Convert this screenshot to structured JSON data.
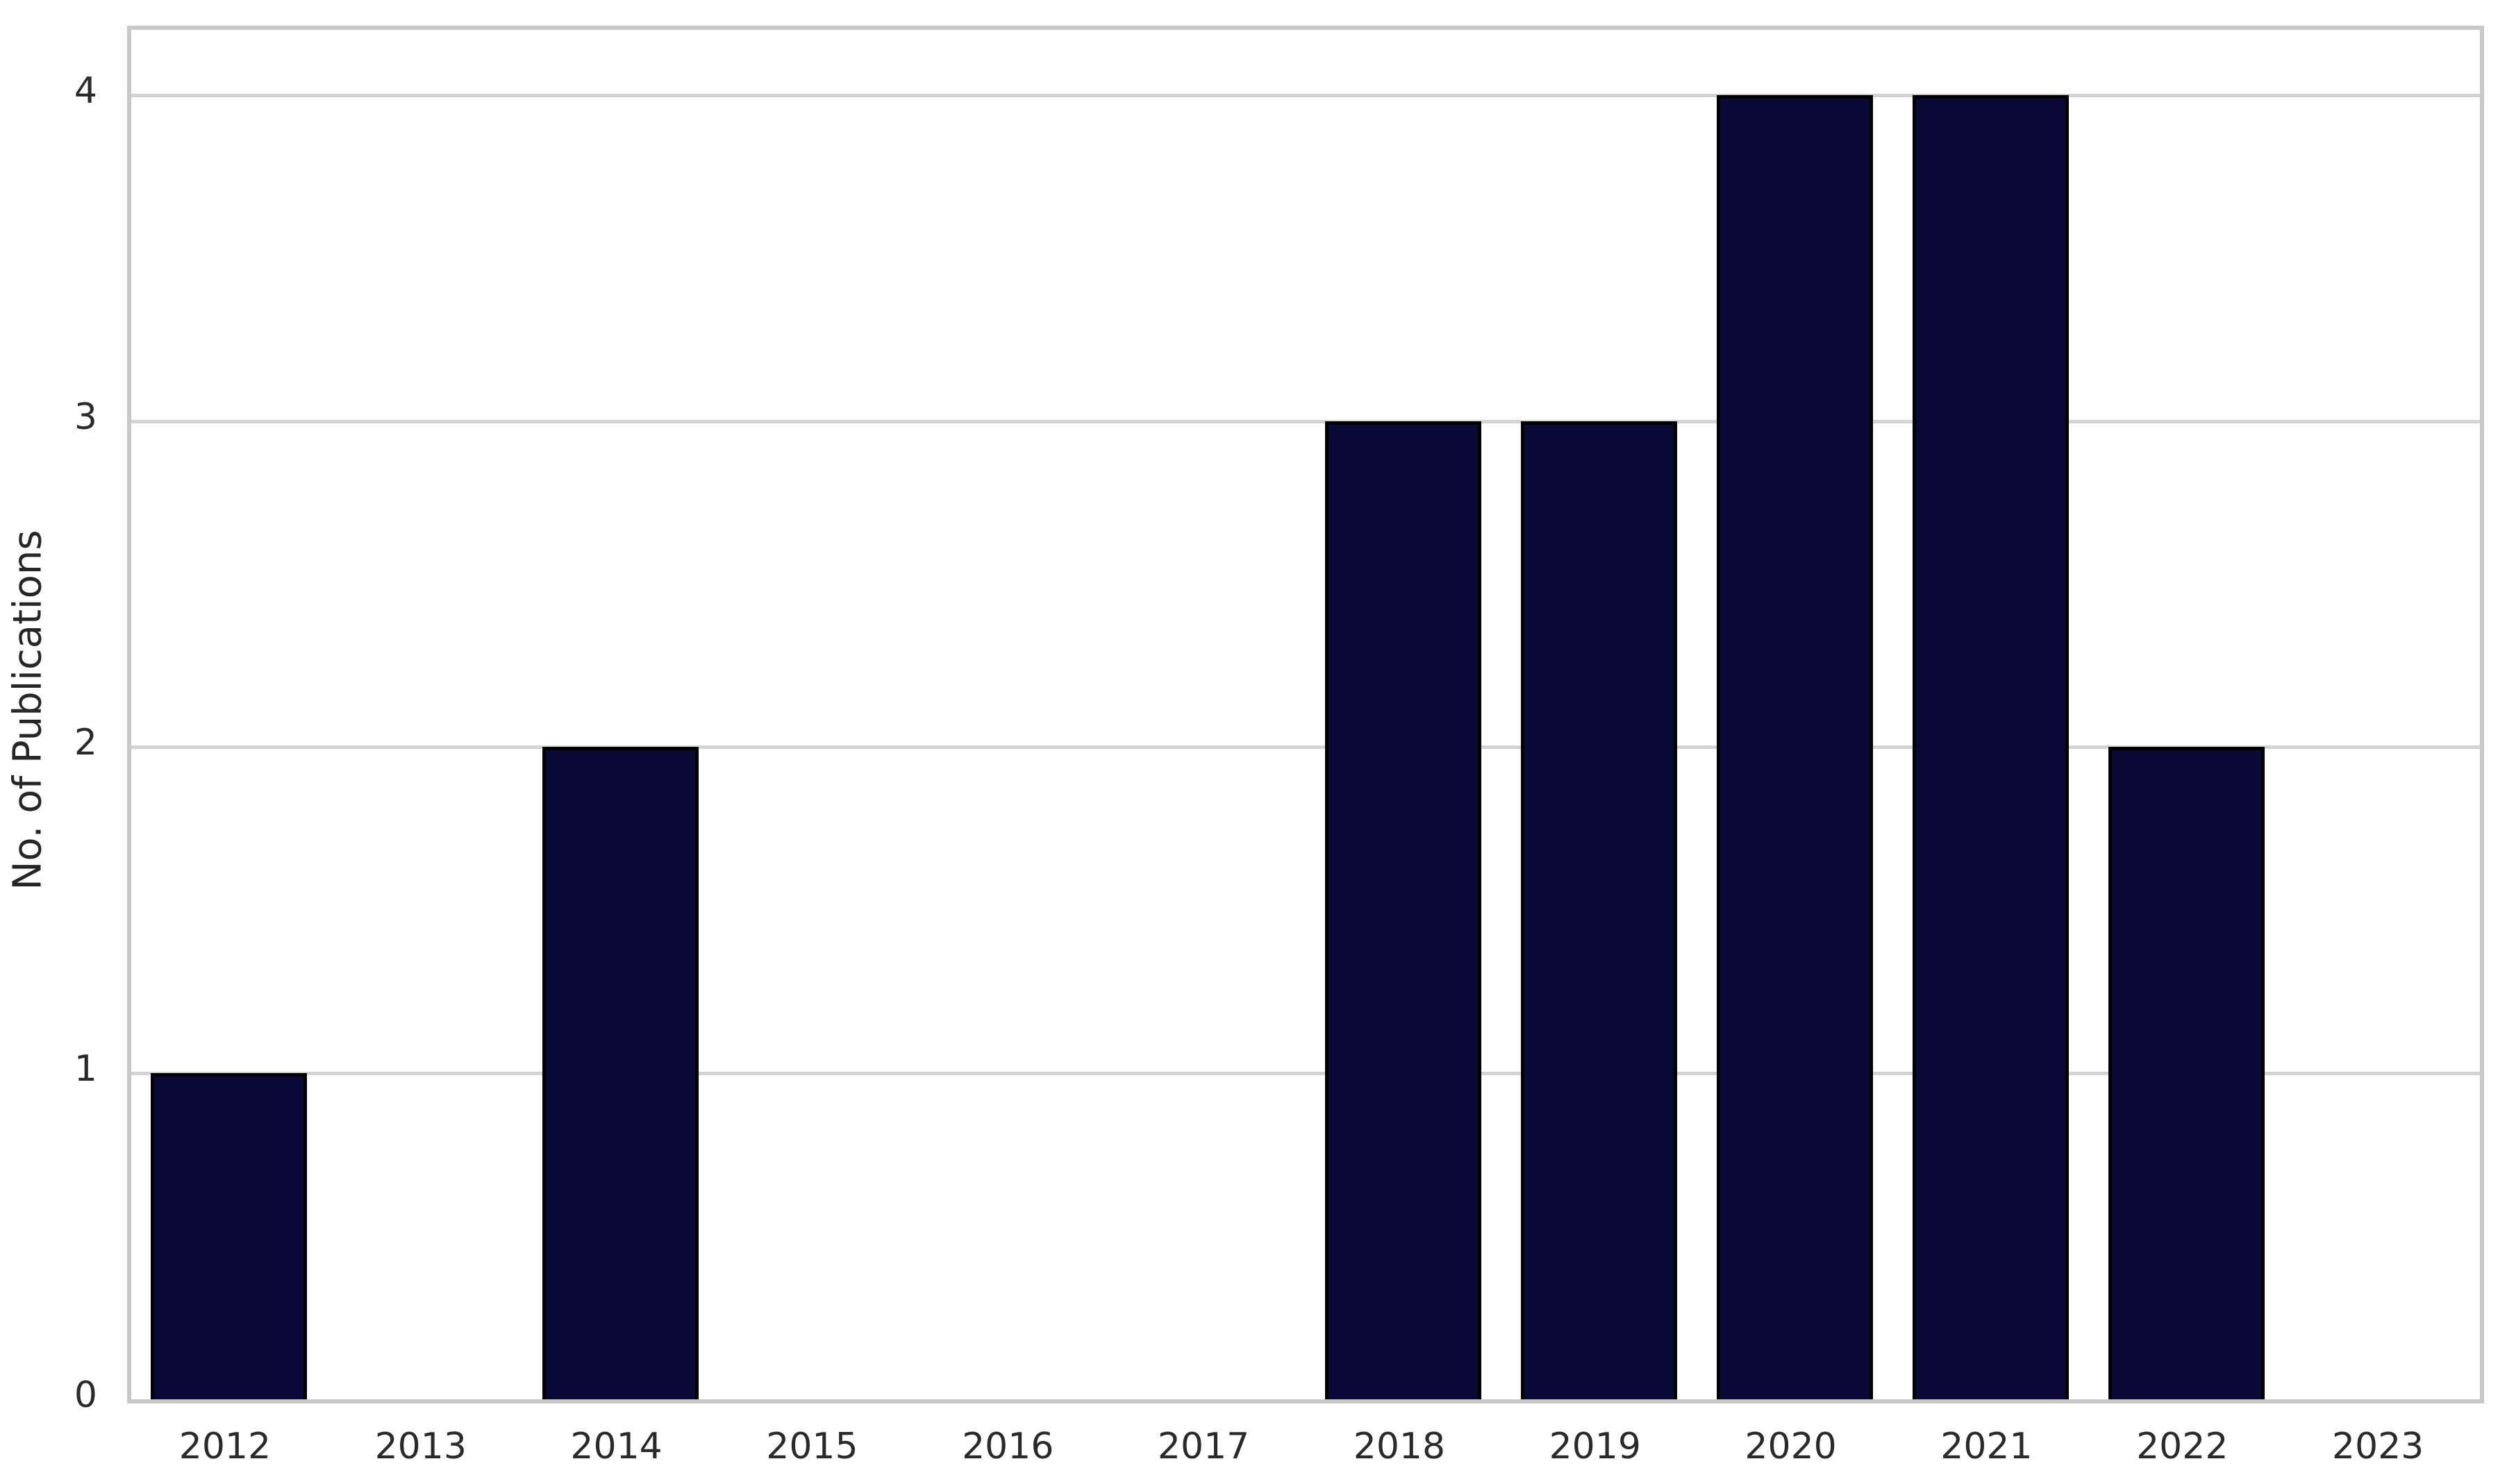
{
  "chart_data": {
    "type": "bar",
    "categories": [
      "2012",
      "2013",
      "2014",
      "2015",
      "2016",
      "2017",
      "2018",
      "2019",
      "2020",
      "2021",
      "2022",
      "2023"
    ],
    "values": [
      1,
      0,
      2,
      0,
      0,
      0,
      3,
      3,
      4,
      4,
      2,
      0
    ],
    "title": "",
    "xlabel": "",
    "ylabel": "No. of Publications",
    "yticks": [
      0,
      1,
      2,
      3,
      4
    ],
    "ylim": [
      0,
      4.2
    ],
    "grid": "horizontal",
    "legend": "none",
    "colors": {
      "bar_fill": "#0a0a37",
      "bar_edge": "#000000",
      "gridline": "#d3d3d3",
      "spine": "#c8c8c8",
      "tick_text": "#2a2a2a",
      "axis_label_text": "#262626",
      "background": "#ffffff"
    }
  }
}
